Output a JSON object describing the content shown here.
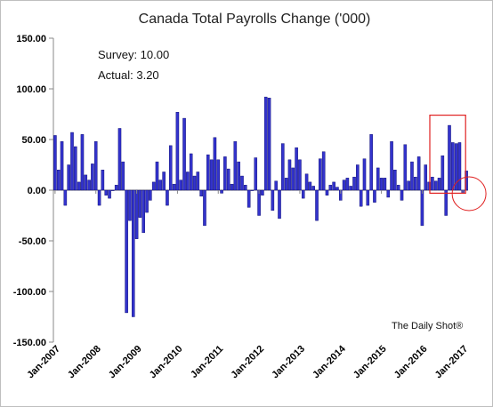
{
  "chart_data": {
    "type": "bar",
    "title": "Canada Total Payrolls Change ('000)",
    "xlabel": "",
    "ylabel": "",
    "ylim": [
      -150,
      150
    ],
    "yticks": [
      "150.00",
      "100.00",
      "50.00",
      "0.00",
      "-50.00",
      "-100.00",
      "-150.00"
    ],
    "ytick_values": [
      150,
      100,
      50,
      0,
      -50,
      -100,
      -150
    ],
    "xticks": [
      "Jan-2007",
      "Jan-2008",
      "Jan-2009",
      "Jan-2010",
      "Jan-2011",
      "Jan-2012",
      "Jan-2013",
      "Jan-2014",
      "Jan-2015",
      "Jan-2016",
      "Jan-2017"
    ],
    "xtick_index": [
      0,
      12,
      24,
      36,
      48,
      60,
      72,
      84,
      96,
      108,
      120
    ],
    "start_month": "Jan-2007",
    "bar_color": "#3333cc",
    "bar_edge": "#000066",
    "values": [
      54,
      20,
      48,
      -15,
      25,
      57,
      43,
      8,
      55,
      15,
      10,
      26,
      48,
      -15,
      20,
      -5,
      -8,
      0,
      5,
      61,
      28,
      -121,
      -30,
      -125,
      -48,
      -27,
      -42,
      -22,
      -10,
      8,
      28,
      10,
      18,
      -15,
      44,
      6,
      77,
      10,
      71,
      18,
      36,
      14,
      18,
      -6,
      -35,
      35,
      30,
      52,
      30,
      -3,
      33,
      21,
      6,
      48,
      28,
      14,
      5,
      -17,
      0,
      32,
      -25,
      -5,
      92,
      91,
      -20,
      9,
      -28,
      46,
      12,
      30,
      22,
      42,
      30,
      -8,
      16,
      8,
      4,
      -30,
      31,
      38,
      -5,
      5,
      8,
      3,
      -10,
      10,
      12,
      4,
      13,
      25,
      -16,
      31,
      -15,
      55,
      -12,
      22,
      12,
      12,
      -7,
      48,
      20,
      5,
      -10,
      45,
      9,
      28,
      13,
      33,
      -35,
      25,
      8,
      13,
      9,
      12,
      34,
      -25,
      64,
      47,
      46,
      47,
      -3,
      19
    ],
    "annotations": {
      "survey": "Survey: 10.00",
      "actual": "Actual:  3.20"
    },
    "highlight_rect_color": "#e02020",
    "highlight_circle_color": "#e02020",
    "source": "The Daily Shot®",
    "grid": false,
    "legend": "none"
  }
}
